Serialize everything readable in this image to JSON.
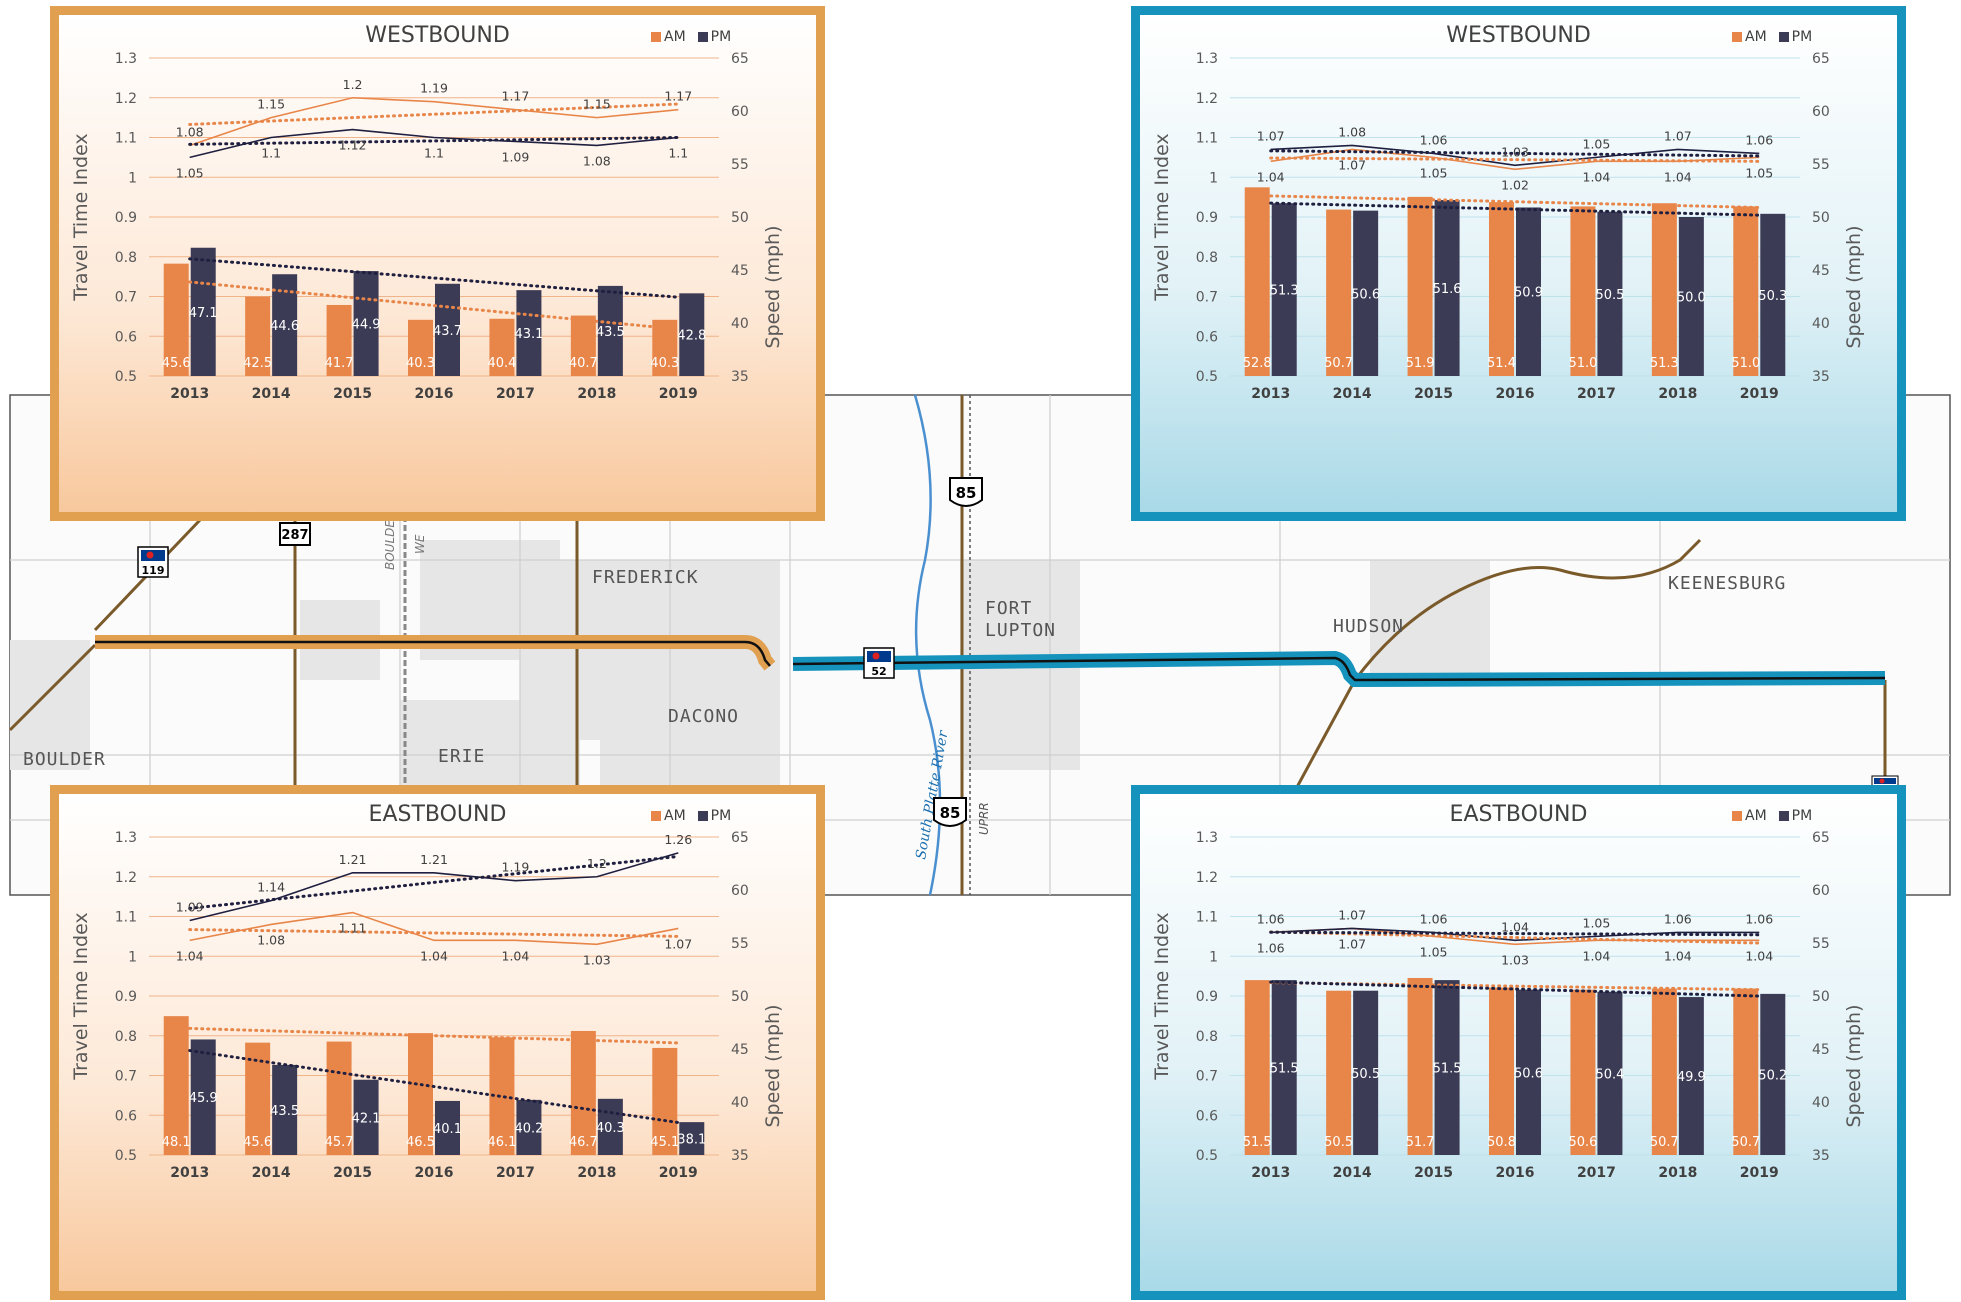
{
  "map": {
    "places": [
      "FREDERICK",
      "FORT",
      "LUPTON",
      "HUDSON",
      "KEENESBURG",
      "DACONO",
      "ERIE",
      "BOULDER"
    ],
    "routes": [
      "287",
      "119",
      "52",
      "85",
      "85"
    ],
    "features": [
      "South Platte River",
      "UPRR",
      "BOULDER",
      "WE"
    ],
    "colors": {
      "west_segment": "#E0A050",
      "east_segment": "#1593BD",
      "road": "#7a5a2a"
    }
  },
  "chart_data": [
    {
      "type": "bar",
      "title": "WESTBOUND",
      "legend": [
        "AM",
        "PM"
      ],
      "categories": [
        "2013",
        "2014",
        "2015",
        "2016",
        "2017",
        "2018",
        "2019"
      ],
      "ylabel": "Travel Time Index",
      "y2label": "Speed (mph)",
      "ylim": [
        0.5,
        1.3
      ],
      "y2lim": [
        35,
        65
      ],
      "yticks": [
        "0.5",
        "0.6",
        "0.7",
        "0.8",
        "0.9",
        "1",
        "1.1",
        "1.2",
        "1.3"
      ],
      "y2ticks": [
        "35",
        "40",
        "45",
        "50",
        "55",
        "60",
        "65"
      ],
      "speed_am": [
        "45.6",
        "42.5",
        "41.7",
        "40.3",
        "40.4",
        "40.7",
        "40.3"
      ],
      "speed_pm": [
        "47.1",
        "44.6",
        "44.9",
        "43.7",
        "43.1",
        "43.5",
        "42.8"
      ],
      "tti_am": [
        "1.08",
        "1.15",
        "1.2",
        "1.19",
        "1.17",
        "1.15",
        "1.17"
      ],
      "tti_pm": [
        "1.05",
        "1.1",
        "1.12",
        "1.1",
        "1.09",
        "1.08",
        "1.1"
      ],
      "colors": {
        "am": "#E8864A",
        "pm": "#3B3B55",
        "grid": "#F0B48A",
        "am_line": "#E8864A",
        "pm_line": "#1f1f40"
      }
    },
    {
      "type": "bar",
      "title": "EASTBOUND",
      "legend": [
        "AM",
        "PM"
      ],
      "categories": [
        "2013",
        "2014",
        "2015",
        "2016",
        "2017",
        "2018",
        "2019"
      ],
      "ylabel": "Travel Time Index",
      "y2label": "Speed (mph)",
      "ylim": [
        0.5,
        1.3
      ],
      "y2lim": [
        35,
        65
      ],
      "yticks": [
        "0.5",
        "0.6",
        "0.7",
        "0.8",
        "0.9",
        "1",
        "1.1",
        "1.2",
        "1.3"
      ],
      "y2ticks": [
        "35",
        "40",
        "45",
        "50",
        "55",
        "60",
        "65"
      ],
      "speed_am": [
        "48.1",
        "45.6",
        "45.7",
        "46.5",
        "46.1",
        "46.7",
        "45.1"
      ],
      "speed_pm": [
        "45.9",
        "43.5",
        "42.1",
        "40.1",
        "40.2",
        "40.3",
        "38.1"
      ],
      "tti_am": [
        "1.04",
        "1.08",
        "1.11",
        "1.04",
        "1.04",
        "1.03",
        "1.07"
      ],
      "tti_pm": [
        "1.09",
        "1.14",
        "1.21",
        "1.21",
        "1.19",
        "1.2",
        "1.26"
      ],
      "colors": {
        "am": "#E8864A",
        "pm": "#3B3B55",
        "grid": "#F0B48A",
        "am_line": "#E8864A",
        "pm_line": "#1f1f40"
      }
    },
    {
      "type": "bar",
      "title": "WESTBOUND",
      "legend": [
        "AM",
        "PM"
      ],
      "categories": [
        "2013",
        "2014",
        "2015",
        "2016",
        "2017",
        "2018",
        "2019"
      ],
      "ylabel": "Travel Time Index",
      "y2label": "Speed (mph)",
      "ylim": [
        0.5,
        1.3
      ],
      "y2lim": [
        35,
        65
      ],
      "yticks": [
        "0.5",
        "0.6",
        "0.7",
        "0.8",
        "0.9",
        "1",
        "1.1",
        "1.2",
        "1.3"
      ],
      "y2ticks": [
        "35",
        "40",
        "45",
        "50",
        "55",
        "60",
        "65"
      ],
      "speed_am": [
        "52.8",
        "50.7",
        "51.9",
        "51.4",
        "51.0",
        "51.3",
        "51.0"
      ],
      "speed_pm": [
        "51.3",
        "50.6",
        "51.6",
        "50.9",
        "50.5",
        "50.0",
        "50.3"
      ],
      "tti_am": [
        "1.04",
        "1.07",
        "1.05",
        "1.02",
        "1.04",
        "1.04",
        "1.05"
      ],
      "tti_pm": [
        "1.07",
        "1.08",
        "1.06",
        "1.03",
        "1.05",
        "1.07",
        "1.06"
      ],
      "colors": {
        "am": "#E8864A",
        "pm": "#3B3B55",
        "grid": "#BFE2EC",
        "am_line": "#E8864A",
        "pm_line": "#1f1f40"
      }
    },
    {
      "type": "bar",
      "title": "EASTBOUND",
      "legend": [
        "AM",
        "PM"
      ],
      "categories": [
        "2013",
        "2014",
        "2015",
        "2016",
        "2017",
        "2018",
        "2019"
      ],
      "ylabel": "Travel Time Index",
      "y2label": "Speed (mph)",
      "ylim": [
        0.5,
        1.3
      ],
      "y2lim": [
        35,
        65
      ],
      "yticks": [
        "0.5",
        "0.6",
        "0.7",
        "0.8",
        "0.9",
        "1",
        "1.1",
        "1.2",
        "1.3"
      ],
      "y2ticks": [
        "35",
        "40",
        "45",
        "50",
        "55",
        "60",
        "65"
      ],
      "speed_am": [
        "51.5",
        "50.5",
        "51.7",
        "50.8",
        "50.6",
        "50.7",
        "50.7"
      ],
      "speed_pm": [
        "51.5",
        "50.5",
        "51.5",
        "50.6",
        "50.4",
        "49.9",
        "50.2"
      ],
      "tti_am": [
        "1.06",
        "1.07",
        "1.05",
        "1.03",
        "1.04",
        "1.04",
        "1.04"
      ],
      "tti_pm": [
        "1.06",
        "1.07",
        "1.06",
        "1.04",
        "1.05",
        "1.06",
        "1.06"
      ],
      "colors": {
        "am": "#E8864A",
        "pm": "#3B3B55",
        "grid": "#BFE2EC",
        "am_line": "#E8864A",
        "pm_line": "#1f1f40"
      }
    }
  ]
}
